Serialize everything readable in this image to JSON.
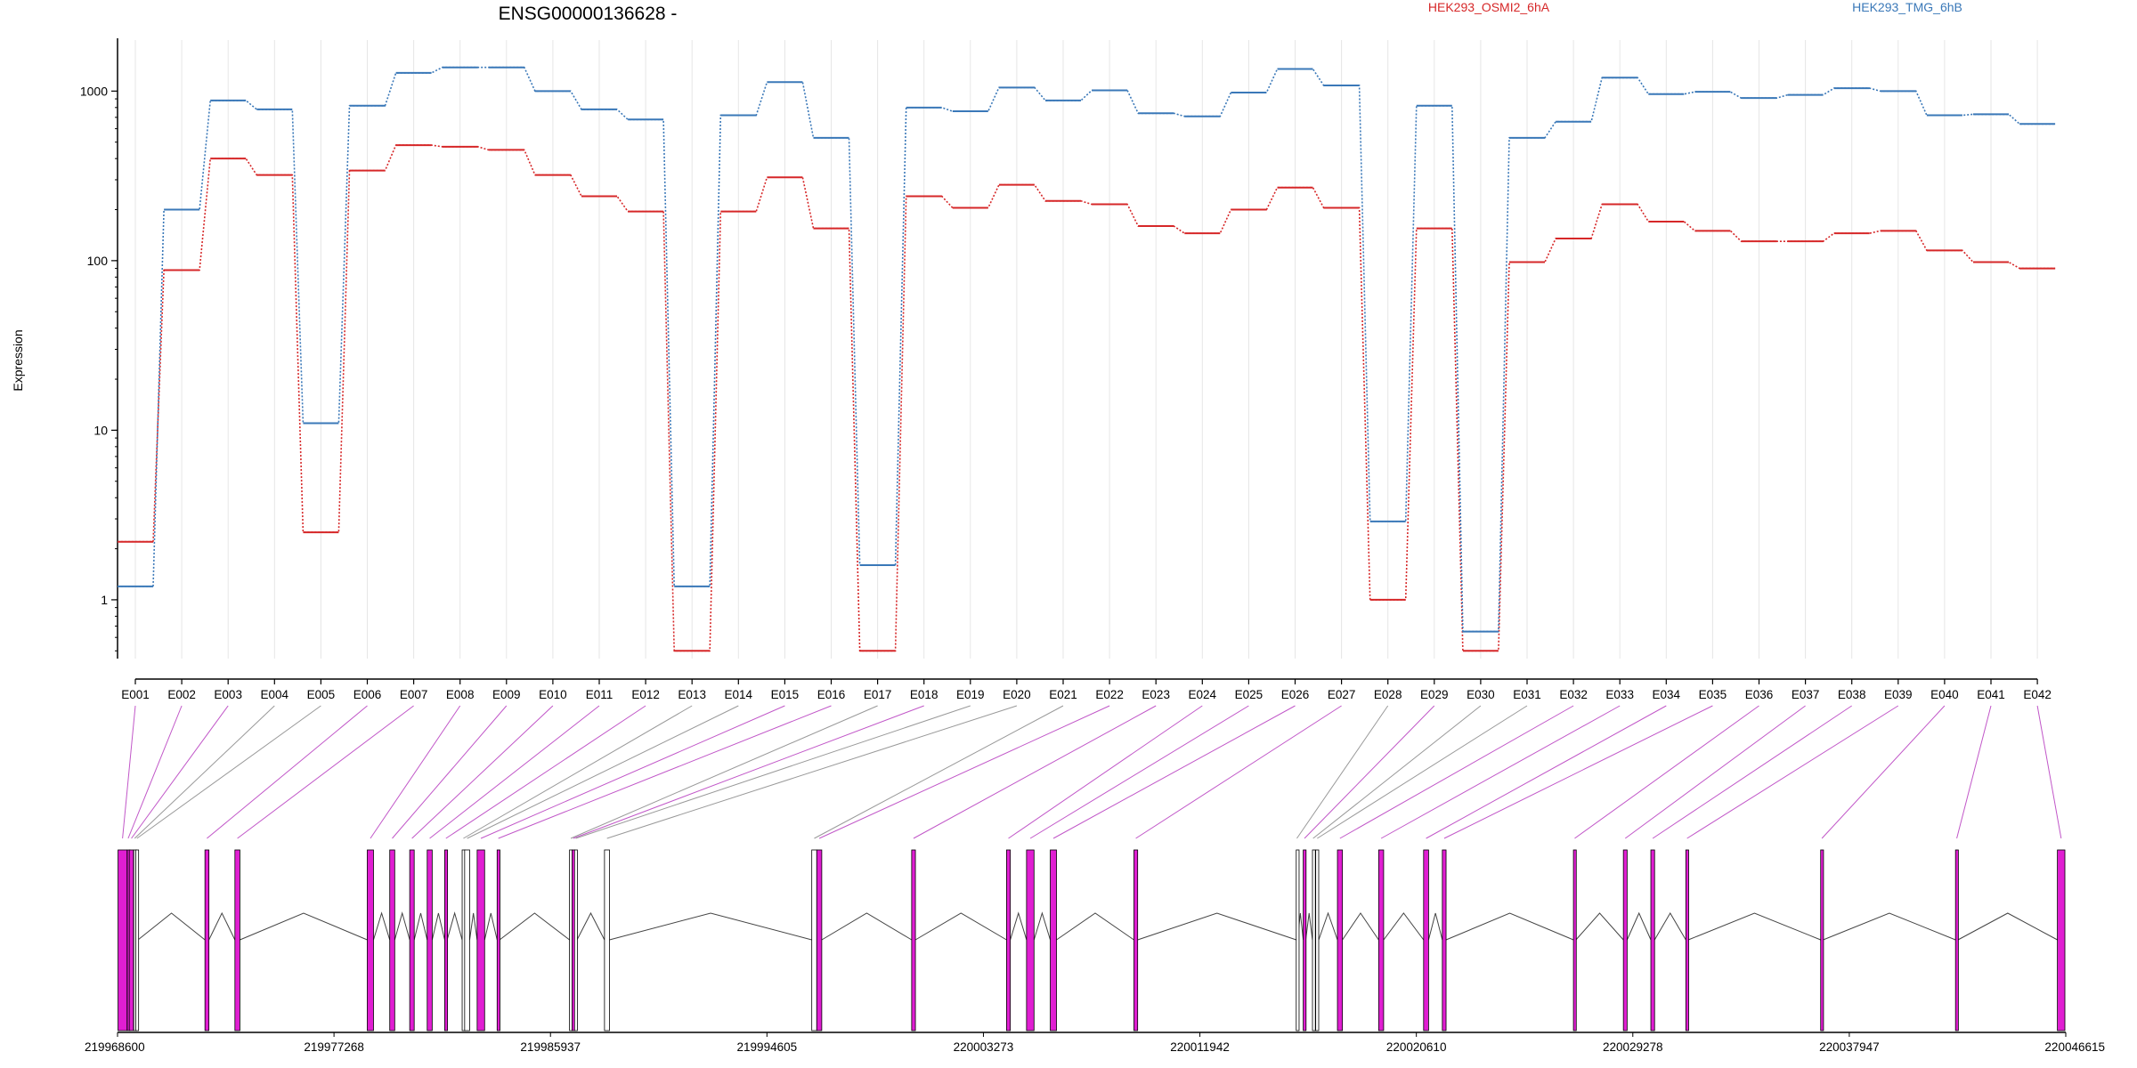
{
  "chart_data": {
    "type": "line",
    "title": "ENSG00000136628 -",
    "ylabel": "Expression",
    "xlabel": "",
    "yscale": "log",
    "ylim": [
      0.45,
      2000
    ],
    "yticks": [
      1,
      10,
      100,
      1000
    ],
    "grid": "vertical",
    "legend_placement": "top",
    "categories": [
      "E001",
      "E002",
      "E003",
      "E004",
      "E005",
      "E006",
      "E007",
      "E008",
      "E009",
      "E010",
      "E011",
      "E012",
      "E013",
      "E014",
      "E015",
      "E016",
      "E017",
      "E018",
      "E019",
      "E020",
      "E021",
      "E022",
      "E023",
      "E024",
      "E025",
      "E026",
      "E027",
      "E028",
      "E029",
      "E030",
      "E031",
      "E032",
      "E033",
      "E034",
      "E035",
      "E036",
      "E037",
      "E038",
      "E039",
      "E040",
      "E041",
      "E042"
    ],
    "series": [
      {
        "name": "HEK293_OSMI2_6hA",
        "color": "#d62728",
        "values": [
          2.2,
          88,
          400,
          320,
          2.5,
          340,
          480,
          470,
          450,
          320,
          240,
          195,
          0.5,
          195,
          310,
          155,
          0.5,
          240,
          205,
          280,
          225,
          215,
          160,
          145,
          200,
          270,
          205,
          1.0,
          155,
          0.5,
          98,
          135,
          215,
          170,
          150,
          130,
          130,
          145,
          150,
          115,
          98,
          90
        ]
      },
      {
        "name": "HEK293_TMG_6hB",
        "color": "#3a78b8",
        "values": [
          1.2,
          200,
          880,
          780,
          11,
          820,
          1280,
          1380,
          1380,
          1000,
          780,
          680,
          1.2,
          720,
          1130,
          530,
          1.6,
          800,
          760,
          1050,
          880,
          1010,
          740,
          710,
          980,
          1350,
          1080,
          2.9,
          820,
          0.65,
          530,
          660,
          1200,
          960,
          990,
          910,
          950,
          1040,
          1000,
          720,
          730,
          640
        ]
      }
    ],
    "genome_axis": {
      "tick_labels": [
        "219968600",
        "219977268",
        "219985937",
        "219994605",
        "220003273",
        "220011942",
        "220020610",
        "220029278",
        "220037947",
        "220046615"
      ]
    },
    "exon_map": {
      "start": 219968600,
      "end": 220046615,
      "colors": {
        "tested": "#e01ed2",
        "untested": "#ffffff",
        "tested_link": "#c157c8",
        "untested_link": "#999999"
      },
      "exons": [
        {
          "id": "E001",
          "start": 219968620,
          "end": 219968980,
          "tested": true
        },
        {
          "id": "E002",
          "start": 219968990,
          "end": 219969060,
          "tested": true
        },
        {
          "id": "E003",
          "start": 219969070,
          "end": 219969240,
          "tested": true
        },
        {
          "id": "E004",
          "start": 219969250,
          "end": 219969320,
          "tested": false
        },
        {
          "id": "E005",
          "start": 219969330,
          "end": 219969420,
          "tested": false
        },
        {
          "id": "E006",
          "start": 219972100,
          "end": 219972260,
          "tested": true
        },
        {
          "id": "E007",
          "start": 219973300,
          "end": 219973500,
          "tested": true
        },
        {
          "id": "E008",
          "start": 219978600,
          "end": 219978850,
          "tested": true
        },
        {
          "id": "E009",
          "start": 219979500,
          "end": 219979700,
          "tested": true
        },
        {
          "id": "E010",
          "start": 219980300,
          "end": 219980480,
          "tested": true
        },
        {
          "id": "E011",
          "start": 219981000,
          "end": 219981200,
          "tested": true
        },
        {
          "id": "E012",
          "start": 219981700,
          "end": 219981800,
          "tested": true
        },
        {
          "id": "E013",
          "start": 219982400,
          "end": 219982500,
          "tested": false
        },
        {
          "id": "E014",
          "start": 219982500,
          "end": 219982700,
          "tested": false
        },
        {
          "id": "E015",
          "start": 219983000,
          "end": 219983300,
          "tested": true
        },
        {
          "id": "E016",
          "start": 219983800,
          "end": 219983900,
          "tested": true
        },
        {
          "id": "E017",
          "start": 219986700,
          "end": 219986800,
          "tested": false
        },
        {
          "id": "E018",
          "start": 219986800,
          "end": 219986900,
          "tested": true
        },
        {
          "id": "E019",
          "start": 219986900,
          "end": 219987000,
          "tested": false
        },
        {
          "id": "E020",
          "start": 219988100,
          "end": 219988300,
          "tested": false
        },
        {
          "id": "E021",
          "start": 219996400,
          "end": 219996600,
          "tested": false
        },
        {
          "id": "E022",
          "start": 219996600,
          "end": 219996800,
          "tested": true
        },
        {
          "id": "E023",
          "start": 220000400,
          "end": 220000550,
          "tested": true
        },
        {
          "id": "E024",
          "start": 220004200,
          "end": 220004350,
          "tested": true
        },
        {
          "id": "E025",
          "start": 220005000,
          "end": 220005300,
          "tested": true
        },
        {
          "id": "E026",
          "start": 220005950,
          "end": 220006200,
          "tested": true
        },
        {
          "id": "E027",
          "start": 220009300,
          "end": 220009450,
          "tested": true
        },
        {
          "id": "E028",
          "start": 220015800,
          "end": 220015850,
          "tested": false
        },
        {
          "id": "E029",
          "start": 220016080,
          "end": 220016180,
          "tested": true
        },
        {
          "id": "E030",
          "start": 220016450,
          "end": 220016500,
          "tested": false
        },
        {
          "id": "E031",
          "start": 220016580,
          "end": 220016700,
          "tested": false
        },
        {
          "id": "E032",
          "start": 220017450,
          "end": 220017650,
          "tested": true
        },
        {
          "id": "E033",
          "start": 220019100,
          "end": 220019300,
          "tested": true
        },
        {
          "id": "E034",
          "start": 220020900,
          "end": 220021100,
          "tested": true
        },
        {
          "id": "E035",
          "start": 220021650,
          "end": 220021800,
          "tested": true
        },
        {
          "id": "E036",
          "start": 220026900,
          "end": 220027000,
          "tested": true
        },
        {
          "id": "E037",
          "start": 220028900,
          "end": 220029050,
          "tested": true
        },
        {
          "id": "E038",
          "start": 220030000,
          "end": 220030150,
          "tested": true
        },
        {
          "id": "E039",
          "start": 220031400,
          "end": 220031500,
          "tested": true
        },
        {
          "id": "E040",
          "start": 220036800,
          "end": 220036900,
          "tested": true
        },
        {
          "id": "E041",
          "start": 220042200,
          "end": 220042300,
          "tested": true
        },
        {
          "id": "E042",
          "start": 220046280,
          "end": 220046580,
          "tested": true
        }
      ]
    }
  }
}
